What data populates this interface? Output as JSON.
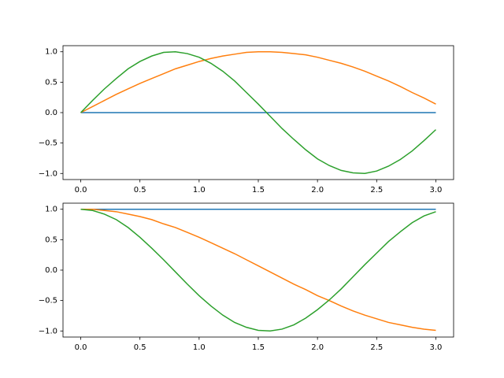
{
  "chart_data": [
    {
      "type": "line",
      "x": [
        0,
        0.1,
        0.2,
        0.3,
        0.4,
        0.5,
        0.6,
        0.7,
        0.8,
        0.9,
        1.0,
        1.1,
        1.2,
        1.3,
        1.4,
        1.5,
        1.6,
        1.7,
        1.8,
        1.9,
        2.0,
        2.1,
        2.2,
        2.3,
        2.4,
        2.5,
        2.6,
        2.7,
        2.8,
        2.9,
        3.0
      ],
      "series": [
        {
          "color": "#1f77b4",
          "values": [
            0,
            0,
            0,
            0,
            0,
            0,
            0,
            0,
            0,
            0,
            0,
            0,
            0,
            0,
            0,
            0,
            0,
            0,
            0,
            0,
            0,
            0,
            0,
            0,
            0,
            0,
            0,
            0,
            0,
            0,
            0
          ]
        },
        {
          "color": "#ff7f0e",
          "values": [
            0,
            0.1,
            0.2,
            0.3,
            0.39,
            0.48,
            0.56,
            0.64,
            0.72,
            0.78,
            0.84,
            0.89,
            0.93,
            0.96,
            0.99,
            1.0,
            1.0,
            0.99,
            0.97,
            0.95,
            0.91,
            0.86,
            0.81,
            0.75,
            0.68,
            0.6,
            0.52,
            0.43,
            0.33,
            0.24,
            0.14
          ]
        },
        {
          "color": "#2ca02c",
          "values": [
            0,
            0.2,
            0.39,
            0.56,
            0.72,
            0.84,
            0.93,
            0.99,
            1.0,
            0.97,
            0.91,
            0.81,
            0.68,
            0.52,
            0.33,
            0.14,
            -0.06,
            -0.26,
            -0.44,
            -0.61,
            -0.76,
            -0.87,
            -0.95,
            -0.99,
            -1.0,
            -0.96,
            -0.88,
            -0.77,
            -0.63,
            -0.46,
            -0.28
          ]
        }
      ],
      "xlim": [
        -0.15,
        3.15
      ],
      "ylim": [
        -1.1,
        1.1
      ],
      "xticks": [
        {
          "value": 0,
          "label": "0.0"
        },
        {
          "value": 0.5,
          "label": "0.5"
        },
        {
          "value": 1,
          "label": "1.0"
        },
        {
          "value": 1.5,
          "label": "1.5"
        },
        {
          "value": 2,
          "label": "2.0"
        },
        {
          "value": 2.5,
          "label": "2.5"
        },
        {
          "value": 3,
          "label": "3.0"
        }
      ],
      "yticks": [
        {
          "value": -1,
          "label": "−1.0"
        },
        {
          "value": -0.5,
          "label": "−0.5"
        },
        {
          "value": 0,
          "label": "0.0"
        },
        {
          "value": 0.5,
          "label": "0.5"
        },
        {
          "value": 1,
          "label": "1.0"
        }
      ]
    },
    {
      "type": "line",
      "x": [
        0,
        0.1,
        0.2,
        0.3,
        0.4,
        0.5,
        0.6,
        0.7,
        0.8,
        0.9,
        1.0,
        1.1,
        1.2,
        1.3,
        1.4,
        1.5,
        1.6,
        1.7,
        1.8,
        1.9,
        2.0,
        2.1,
        2.2,
        2.3,
        2.4,
        2.5,
        2.6,
        2.7,
        2.8,
        2.9,
        3.0
      ],
      "series": [
        {
          "color": "#1f77b4",
          "values": [
            1,
            1,
            1,
            1,
            1,
            1,
            1,
            1,
            1,
            1,
            1,
            1,
            1,
            1,
            1,
            1,
            1,
            1,
            1,
            1,
            1,
            1,
            1,
            1,
            1,
            1,
            1,
            1,
            1,
            1,
            1
          ]
        },
        {
          "color": "#ff7f0e",
          "values": [
            1,
            1.0,
            0.98,
            0.96,
            0.92,
            0.88,
            0.83,
            0.76,
            0.7,
            0.62,
            0.54,
            0.45,
            0.36,
            0.27,
            0.17,
            0.07,
            -0.03,
            -0.13,
            -0.23,
            -0.32,
            -0.42,
            -0.5,
            -0.59,
            -0.67,
            -0.74,
            -0.8,
            -0.86,
            -0.9,
            -0.94,
            -0.97,
            -0.99
          ]
        },
        {
          "color": "#2ca02c",
          "values": [
            1,
            0.98,
            0.92,
            0.83,
            0.7,
            0.54,
            0.36,
            0.17,
            -0.03,
            -0.23,
            -0.42,
            -0.59,
            -0.74,
            -0.86,
            -0.94,
            -0.99,
            -1.0,
            -0.97,
            -0.9,
            -0.79,
            -0.65,
            -0.49,
            -0.31,
            -0.11,
            0.09,
            0.28,
            0.47,
            0.63,
            0.78,
            0.89,
            0.96
          ]
        }
      ],
      "xlim": [
        -0.15,
        3.15
      ],
      "ylim": [
        -1.1,
        1.1
      ],
      "xticks": [
        {
          "value": 0,
          "label": "0.0"
        },
        {
          "value": 0.5,
          "label": "0.5"
        },
        {
          "value": 1,
          "label": "1.0"
        },
        {
          "value": 1.5,
          "label": "1.5"
        },
        {
          "value": 2,
          "label": "2.0"
        },
        {
          "value": 2.5,
          "label": "2.5"
        },
        {
          "value": 3,
          "label": "3.0"
        }
      ],
      "yticks": [
        {
          "value": -1,
          "label": "−1.0"
        },
        {
          "value": -0.5,
          "label": "−0.5"
        },
        {
          "value": 0,
          "label": "0.0"
        },
        {
          "value": 0.5,
          "label": "0.5"
        },
        {
          "value": 1,
          "label": "1.0"
        }
      ]
    }
  ]
}
